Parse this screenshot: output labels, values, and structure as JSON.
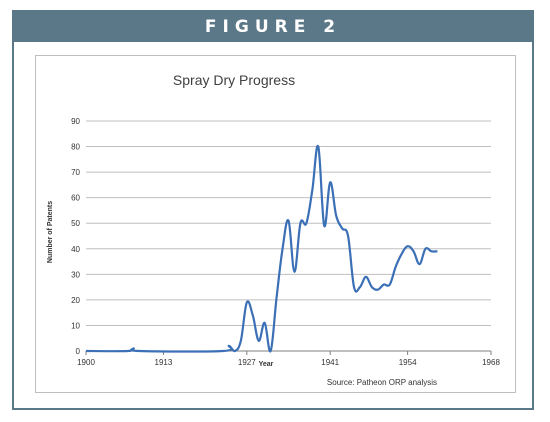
{
  "figure_label": "FIGURE 2",
  "source_note": "Source: Patheon ORP analysis",
  "chart_data": {
    "type": "line",
    "title": "Spray Dry Progress",
    "xlabel": "Year",
    "ylabel": "Number of Patents",
    "xlim": [
      1900,
      1968
    ],
    "ylim": [
      0,
      90
    ],
    "x_ticks": [
      1900,
      1913,
      1927,
      1941,
      1954,
      1968
    ],
    "y_ticks": [
      0,
      10,
      20,
      30,
      40,
      50,
      60,
      70,
      80,
      90
    ],
    "grid": "horizontal",
    "color": "#3b6fb6",
    "series": [
      {
        "x": [
          1900,
          1907,
          1908,
          1909,
          1923,
          1924,
          1925,
          1926,
          1927,
          1928,
          1929,
          1930,
          1931,
          1932,
          1933,
          1934,
          1935,
          1936,
          1937,
          1938,
          1939,
          1940,
          1941,
          1942,
          1943,
          1944,
          1945,
          1946,
          1947,
          1948,
          1949,
          1950,
          1951,
          1952,
          1953,
          1954,
          1955,
          1956,
          1957,
          1958,
          1959
        ],
        "y": [
          0,
          0,
          1,
          0,
          0,
          2,
          0,
          4,
          19,
          14,
          4,
          11,
          0,
          21,
          40,
          51,
          31,
          50,
          50,
          63,
          80,
          49,
          66,
          53,
          48,
          45,
          25,
          25,
          29,
          25,
          24,
          26,
          26,
          33,
          38,
          41,
          39,
          34,
          40,
          39,
          39
        ]
      }
    ]
  }
}
